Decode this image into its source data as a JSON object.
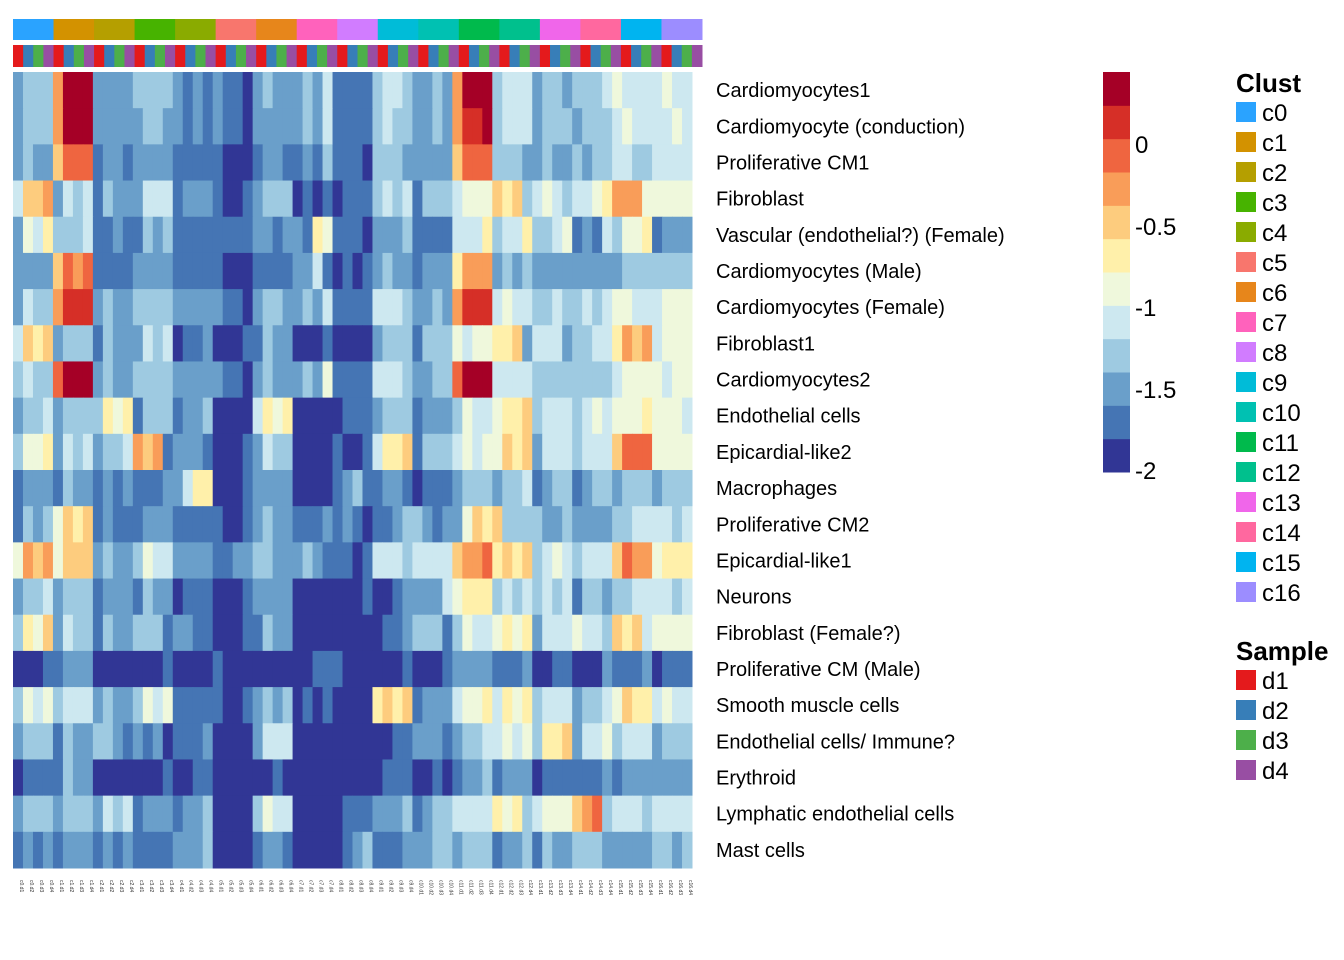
{
  "chart_data": {
    "type": "heatmap",
    "title": "",
    "color_scale": {
      "palette": [
        "#313695",
        "#4575b4",
        "#6a9fca",
        "#9ecae1",
        "#cde8f0",
        "#eff8dc",
        "#fff0aa",
        "#fdcc7e",
        "#f99d59",
        "#ef6540",
        "#d62f27",
        "#a50026"
      ],
      "ticks": [
        "0",
        "-0.5",
        "-1",
        "-1.5",
        "-2"
      ],
      "range": [
        -2,
        0.4
      ]
    },
    "rows": [
      "Cardiomyocytes1",
      "Cardiomyocyte (conduction)",
      "Proliferative CM1",
      "Fibroblast",
      "Vascular (endothelial?) (Female)",
      "Cardiomyocytes (Male)",
      "Cardiomyocytes (Female)",
      "Fibroblast1",
      "Cardiomyocytes2",
      "Endothelial cells",
      "Epicardial-like2",
      "Macrophages",
      "Proliferative CM2",
      "Epicardial-like1",
      "Neurons",
      "Fibroblast (Female?)",
      "Proliferative CM (Male)",
      "Smooth muscle cells",
      "Endothelial cells/ Immune?",
      "Erythroid",
      "Lymphatic endothelial cells",
      "Mast cells"
    ],
    "clusters": [
      "c0",
      "c1",
      "c2",
      "c3",
      "c4",
      "c5",
      "c6",
      "c7",
      "c8",
      "c9",
      "c10",
      "c11",
      "c12",
      "c13",
      "c14",
      "c15",
      "c16"
    ],
    "samples": [
      "d1",
      "d2",
      "d3",
      "d4"
    ],
    "cluster_colors": {
      "c0": "#2aa3ff",
      "c1": "#d39200",
      "c2": "#b59f00",
      "c3": "#47b300",
      "c4": "#8aab00",
      "c5": "#f8766d",
      "c6": "#e7861b",
      "c7": "#ff62bc",
      "c8": "#d17cff",
      "c9": "#00bcd8",
      "c10": "#00c1b2",
      "c11": "#00ba4c",
      "c12": "#00c08d",
      "c13": "#f066ea",
      "c14": "#ff689f",
      "c15": "#00b4f0",
      "c16": "#9c8dff"
    },
    "sample_colors": {
      "d1": "#e41a1c",
      "d2": "#377eb8",
      "d3": "#4daf4a",
      "d4": "#984ea3"
    },
    "bins": [
      "2333822113333433221212300230022321112233221112222333344322455334455442244333444433333232342",
      "233382211333333442222221230022321112233221122222333344322455334455442244333444433333232342",
      "2332811212122222220112213222333111333332222222222323432233343423333333"
    ],
    "values_bin_rows": [
      [
        2,
        3,
        3,
        3,
        8,
        11,
        11,
        11,
        2,
        2,
        2,
        2,
        3,
        3,
        3,
        3,
        2,
        1,
        2,
        1,
        2,
        1,
        1,
        0,
        2,
        3,
        2,
        2,
        2,
        3,
        2,
        4,
        1,
        1,
        1,
        1,
        3,
        4,
        4,
        3,
        2,
        2,
        3,
        2,
        8,
        11,
        11,
        11,
        3,
        4,
        4,
        4,
        2,
        3,
        3,
        2,
        3,
        3,
        3,
        4,
        5,
        4,
        4,
        4,
        4,
        5,
        4,
        4
      ],
      [
        2,
        3,
        3,
        3,
        8,
        11,
        11,
        11,
        2,
        2,
        2,
        2,
        2,
        3,
        3,
        2,
        2,
        1,
        2,
        1,
        2,
        1,
        1,
        0,
        2,
        2,
        2,
        2,
        2,
        3,
        2,
        4,
        1,
        1,
        1,
        1,
        3,
        4,
        3,
        3,
        2,
        2,
        3,
        2,
        8,
        10,
        10,
        11,
        3,
        4,
        4,
        4,
        2,
        3,
        3,
        3,
        2,
        3,
        3,
        3,
        4,
        5,
        4,
        4,
        4,
        4,
        5,
        4
      ],
      [
        2,
        3,
        2,
        2,
        7,
        9,
        9,
        9,
        1,
        2,
        2,
        1,
        2,
        2,
        2,
        2,
        1,
        1,
        1,
        1,
        1,
        0,
        0,
        0,
        1,
        2,
        2,
        1,
        1,
        2,
        1,
        3,
        1,
        1,
        1,
        0,
        3,
        3,
        3,
        2,
        2,
        2,
        2,
        2,
        7,
        9,
        9,
        9,
        3,
        3,
        3,
        2,
        2,
        3,
        2,
        2,
        3,
        2,
        3,
        3,
        4,
        4,
        3,
        3,
        4,
        4,
        4,
        4
      ],
      [
        4,
        7,
        7,
        8,
        2,
        4,
        3,
        4,
        1,
        3,
        2,
        2,
        2,
        4,
        4,
        4,
        1,
        2,
        2,
        2,
        1,
        0,
        0,
        1,
        2,
        3,
        3,
        3,
        0,
        1,
        0,
        1,
        0,
        1,
        1,
        1,
        3,
        4,
        3,
        4,
        1,
        3,
        3,
        3,
        4,
        5,
        5,
        5,
        7,
        6,
        7,
        3,
        4,
        5,
        4,
        3,
        4,
        4,
        5,
        6,
        8,
        8,
        8,
        5,
        5,
        5,
        5,
        5
      ],
      [
        2,
        5,
        4,
        6,
        3,
        3,
        3,
        4,
        1,
        1,
        2,
        1,
        1,
        3,
        2,
        3,
        1,
        1,
        1,
        1,
        1,
        1,
        1,
        1,
        2,
        2,
        1,
        2,
        2,
        1,
        6,
        5,
        1,
        1,
        1,
        0,
        2,
        2,
        2,
        3,
        1,
        1,
        1,
        1,
        4,
        4,
        4,
        6,
        3,
        4,
        4,
        6,
        3,
        3,
        4,
        5,
        1,
        2,
        1,
        4,
        3,
        5,
        5,
        6,
        1,
        2,
        2,
        2
      ],
      [
        2,
        2,
        2,
        2,
        7,
        9,
        8,
        9,
        1,
        1,
        1,
        1,
        2,
        2,
        2,
        2,
        1,
        1,
        1,
        1,
        1,
        0,
        0,
        0,
        1,
        1,
        1,
        1,
        2,
        2,
        4,
        1,
        0,
        1,
        0,
        1,
        2,
        3,
        2,
        2,
        1,
        2,
        2,
        2,
        6,
        8,
        8,
        8,
        2,
        3,
        2,
        3,
        2,
        2,
        2,
        2,
        2,
        2,
        2,
        2,
        2,
        3,
        3,
        3,
        3,
        3,
        3,
        3
      ],
      [
        2,
        4,
        3,
        3,
        8,
        10,
        10,
        10,
        2,
        3,
        2,
        2,
        3,
        3,
        3,
        3,
        2,
        2,
        2,
        2,
        2,
        1,
        1,
        0,
        2,
        3,
        3,
        2,
        2,
        3,
        2,
        4,
        1,
        1,
        1,
        1,
        4,
        4,
        4,
        3,
        2,
        2,
        3,
        2,
        8,
        10,
        10,
        10,
        4,
        5,
        4,
        4,
        3,
        3,
        4,
        3,
        3,
        4,
        3,
        4,
        5,
        5,
        4,
        4,
        4,
        5,
        5,
        5
      ],
      [
        4,
        7,
        6,
        7,
        2,
        3,
        3,
        3,
        1,
        3,
        2,
        2,
        2,
        4,
        3,
        4,
        0,
        1,
        1,
        2,
        0,
        0,
        0,
        1,
        1,
        3,
        2,
        2,
        0,
        0,
        0,
        1,
        0,
        0,
        0,
        0,
        2,
        3,
        3,
        3,
        1,
        3,
        3,
        3,
        5,
        4,
        5,
        5,
        6,
        6,
        7,
        2,
        4,
        4,
        4,
        2,
        3,
        3,
        4,
        4,
        6,
        8,
        7,
        8,
        4,
        5,
        5,
        5
      ],
      [
        3,
        4,
        3,
        3,
        9,
        11,
        11,
        11,
        2,
        3,
        2,
        2,
        3,
        3,
        3,
        3,
        2,
        2,
        2,
        2,
        2,
        1,
        1,
        0,
        2,
        3,
        2,
        2,
        2,
        3,
        2,
        5,
        1,
        1,
        1,
        1,
        4,
        4,
        4,
        3,
        2,
        2,
        3,
        3,
        9,
        11,
        11,
        11,
        4,
        4,
        4,
        4,
        3,
        3,
        3,
        3,
        3,
        3,
        3,
        3,
        4,
        5,
        5,
        5,
        5,
        4,
        5,
        5
      ],
      [
        2,
        3,
        3,
        4,
        2,
        3,
        3,
        3,
        3,
        6,
        5,
        6,
        1,
        3,
        3,
        3,
        1,
        2,
        2,
        3,
        0,
        0,
        0,
        0,
        4,
        6,
        5,
        6,
        0,
        0,
        0,
        0,
        0,
        1,
        1,
        1,
        2,
        3,
        3,
        3,
        1,
        2,
        2,
        2,
        3,
        5,
        4,
        4,
        5,
        6,
        6,
        7,
        3,
        4,
        4,
        4,
        3,
        4,
        5,
        4,
        5,
        5,
        5,
        6,
        5,
        5,
        5,
        4
      ],
      [
        3,
        5,
        5,
        6,
        2,
        4,
        3,
        4,
        2,
        3,
        3,
        4,
        8,
        7,
        8,
        1,
        2,
        2,
        2,
        1,
        0,
        0,
        0,
        1,
        2,
        4,
        3,
        3,
        0,
        0,
        0,
        0,
        1,
        0,
        0,
        1,
        4,
        6,
        6,
        7,
        1,
        3,
        3,
        3,
        4,
        5,
        4,
        5,
        5,
        7,
        6,
        7,
        2,
        4,
        4,
        4,
        3,
        4,
        4,
        4,
        7,
        9,
        9,
        9,
        5,
        5,
        5,
        5
      ],
      [
        1,
        2,
        2,
        2,
        1,
        3,
        2,
        2,
        1,
        2,
        1,
        2,
        1,
        1,
        1,
        2,
        2,
        4,
        6,
        6,
        0,
        0,
        0,
        1,
        2,
        2,
        2,
        2,
        0,
        0,
        0,
        0,
        1,
        2,
        3,
        1,
        1,
        2,
        2,
        1,
        0,
        1,
        1,
        1,
        2,
        3,
        3,
        3,
        2,
        3,
        3,
        4,
        1,
        2,
        3,
        3,
        1,
        2,
        3,
        3,
        2,
        3,
        3,
        3,
        2,
        3,
        3,
        3
      ],
      [
        1,
        3,
        2,
        3,
        5,
        7,
        6,
        7,
        1,
        2,
        1,
        1,
        1,
        2,
        2,
        2,
        1,
        1,
        1,
        1,
        1,
        0,
        0,
        1,
        2,
        3,
        2,
        2,
        1,
        1,
        1,
        2,
        1,
        2,
        1,
        0,
        1,
        1,
        2,
        3,
        3,
        2,
        1,
        2,
        2,
        5,
        7,
        6,
        7,
        3,
        3,
        3,
        3,
        2,
        2,
        3,
        2,
        2,
        2,
        2,
        3,
        3,
        4,
        4,
        4,
        4,
        3,
        4
      ],
      [
        5,
        8,
        7,
        8,
        5,
        7,
        7,
        7,
        2,
        3,
        2,
        2,
        3,
        5,
        4,
        4,
        2,
        2,
        2,
        2,
        1,
        1,
        2,
        2,
        3,
        3,
        2,
        2,
        2,
        3,
        2,
        1,
        1,
        1,
        0,
        1,
        4,
        4,
        4,
        3,
        4,
        4,
        4,
        4,
        7,
        8,
        8,
        9,
        6,
        7,
        6,
        7,
        3,
        4,
        5,
        4,
        3,
        4,
        4,
        4,
        7,
        9,
        8,
        8,
        5,
        6,
        6,
        6
      ],
      [
        2,
        3,
        3,
        4,
        2,
        3,
        3,
        3,
        1,
        2,
        2,
        2,
        1,
        3,
        2,
        2,
        0,
        1,
        1,
        1,
        0,
        0,
        0,
        1,
        2,
        2,
        2,
        2,
        0,
        0,
        0,
        0,
        0,
        0,
        0,
        1,
        0,
        0,
        1,
        2,
        2,
        2,
        2,
        4,
        5,
        6,
        6,
        6,
        3,
        4,
        3,
        4,
        3,
        4,
        3,
        4,
        1,
        3,
        3,
        2,
        3,
        3,
        4,
        4,
        4,
        4,
        3,
        4
      ],
      [
        3,
        6,
        5,
        7,
        2,
        4,
        3,
        3,
        1,
        3,
        2,
        2,
        3,
        3,
        3,
        1,
        2,
        2,
        1,
        1,
        0,
        0,
        0,
        1,
        1,
        3,
        2,
        2,
        0,
        0,
        0,
        0,
        0,
        0,
        0,
        0,
        0,
        1,
        1,
        2,
        3,
        3,
        3,
        1,
        3,
        5,
        4,
        4,
        5,
        6,
        5,
        6,
        2,
        4,
        4,
        4,
        5,
        4,
        4,
        3,
        7,
        6,
        7,
        4,
        5,
        5,
        5,
        5
      ],
      [
        0,
        0,
        0,
        1,
        1,
        2,
        2,
        2,
        0,
        0,
        0,
        0,
        0,
        0,
        0,
        1,
        0,
        0,
        0,
        0,
        1,
        0,
        0,
        0,
        0,
        0,
        0,
        0,
        0,
        0,
        1,
        1,
        1,
        0,
        0,
        0,
        0,
        0,
        0,
        1,
        0,
        0,
        0,
        1,
        2,
        2,
        2,
        2,
        1,
        1,
        1,
        2,
        0,
        0,
        1,
        1,
        0,
        0,
        0,
        2,
        1,
        1,
        1,
        2,
        0,
        1,
        1,
        1
      ],
      [
        3,
        5,
        4,
        5,
        3,
        4,
        4,
        4,
        2,
        3,
        2,
        2,
        3,
        5,
        4,
        5,
        1,
        1,
        1,
        1,
        1,
        0,
        0,
        1,
        2,
        3,
        2,
        3,
        0,
        1,
        0,
        1,
        0,
        0,
        0,
        0,
        6,
        7,
        6,
        7,
        1,
        2,
        2,
        2,
        4,
        5,
        5,
        6,
        4,
        6,
        5,
        6,
        3,
        4,
        4,
        4,
        2,
        3,
        3,
        4,
        5,
        7,
        6,
        6,
        4,
        5,
        4,
        4
      ],
      [
        2,
        3,
        3,
        3,
        1,
        3,
        2,
        2,
        3,
        3,
        2,
        1,
        2,
        1,
        2,
        0,
        1,
        1,
        1,
        2,
        0,
        0,
        0,
        0,
        2,
        4,
        4,
        4,
        0,
        0,
        0,
        0,
        0,
        0,
        0,
        0,
        0,
        0,
        1,
        1,
        2,
        2,
        2,
        1,
        2,
        3,
        3,
        4,
        4,
        5,
        4,
        5,
        3,
        6,
        6,
        7,
        2,
        4,
        4,
        5,
        3,
        4,
        4,
        4,
        2,
        3,
        3,
        3
      ],
      [
        0,
        1,
        1,
        1,
        1,
        3,
        2,
        2,
        0,
        0,
        0,
        0,
        0,
        0,
        0,
        1,
        0,
        0,
        1,
        1,
        0,
        0,
        0,
        0,
        0,
        0,
        1,
        0,
        0,
        0,
        0,
        0,
        0,
        0,
        0,
        0,
        0,
        1,
        1,
        1,
        0,
        0,
        1,
        0,
        1,
        2,
        2,
        3,
        1,
        2,
        2,
        2,
        0,
        1,
        1,
        1,
        1,
        1,
        1,
        2,
        1,
        2,
        2,
        2,
        2,
        2,
        2,
        2
      ],
      [
        2,
        3,
        3,
        3,
        2,
        3,
        3,
        3,
        2,
        4,
        3,
        4,
        1,
        2,
        2,
        2,
        1,
        2,
        2,
        3,
        0,
        0,
        0,
        0,
        3,
        5,
        4,
        4,
        0,
        0,
        0,
        0,
        0,
        1,
        1,
        1,
        2,
        2,
        2,
        3,
        1,
        2,
        3,
        3,
        4,
        4,
        4,
        4,
        6,
        5,
        6,
        3,
        4,
        5,
        5,
        5,
        7,
        8,
        9,
        3,
        4,
        4,
        4,
        3,
        4,
        4,
        4,
        4
      ],
      [
        1,
        2,
        1,
        2,
        1,
        2,
        2,
        2,
        1,
        2,
        1,
        2,
        1,
        1,
        1,
        1,
        2,
        2,
        2,
        3,
        0,
        0,
        0,
        0,
        1,
        2,
        2,
        1,
        0,
        0,
        0,
        0,
        0,
        1,
        2,
        3,
        1,
        1,
        1,
        2,
        2,
        2,
        3,
        3,
        2,
        3,
        3,
        3,
        1,
        2,
        2,
        3,
        1,
        3,
        2,
        2,
        3,
        3,
        3,
        2,
        2,
        2,
        2,
        2,
        3,
        3,
        2,
        3
      ]
    ],
    "column_labels_format": "cluster.sample",
    "legends": [
      {
        "title": "Clust",
        "items": [
          "c0",
          "c1",
          "c2",
          "c3",
          "c4",
          "c5",
          "c6",
          "c7",
          "c8",
          "c9",
          "c10",
          "c11",
          "c12",
          "c13",
          "c14",
          "c15",
          "c16"
        ]
      },
      {
        "title": "Sample",
        "items": [
          "d1",
          "d2",
          "d3",
          "d4"
        ]
      }
    ]
  }
}
